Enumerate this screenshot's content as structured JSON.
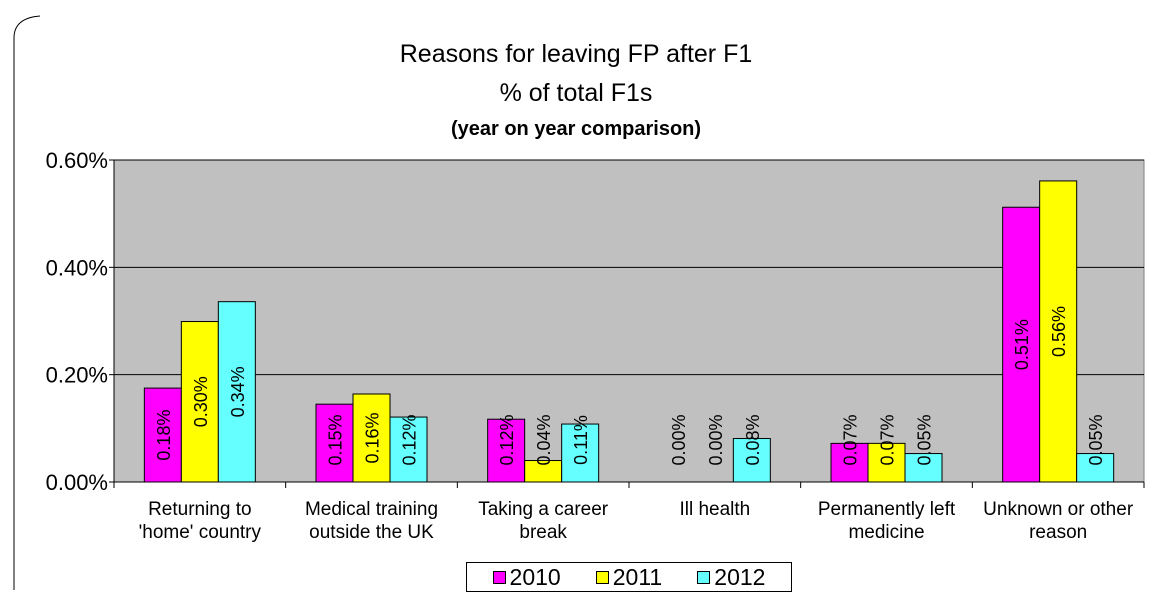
{
  "chart_data": {
    "type": "bar",
    "title_lines": [
      "Reasons for leaving FP after F1",
      "% of total F1s",
      "(year on year comparison)"
    ],
    "categories": [
      [
        "Returning to",
        "'home' country"
      ],
      [
        "Medical training",
        "outside the UK"
      ],
      [
        "Taking a career",
        "break"
      ],
      [
        "Ill health"
      ],
      [
        "Permanently left",
        "medicine"
      ],
      [
        "Unknown or other",
        "reason"
      ]
    ],
    "series": [
      {
        "name": "2010",
        "color": "#ff00ff",
        "values": [
          0.175,
          0.145,
          0.117,
          0.0,
          0.072,
          0.512
        ],
        "labels": [
          "0.18%",
          "0.15%",
          "0.12%",
          "0.00%",
          "0.07%",
          "0.51%"
        ]
      },
      {
        "name": "2011",
        "color": "#ffff00",
        "values": [
          0.299,
          0.164,
          0.04,
          0.0,
          0.072,
          0.561
        ],
        "labels": [
          "0.30%",
          "0.16%",
          "0.04%",
          "0.00%",
          "0.07%",
          "0.56%"
        ]
      },
      {
        "name": "2012",
        "color": "#66ffff",
        "values": [
          0.336,
          0.121,
          0.108,
          0.081,
          0.053,
          0.053
        ],
        "labels": [
          "0.34%",
          "0.12%",
          "0.11%",
          "0.08%",
          "0.05%",
          "0.05%"
        ]
      }
    ],
    "y_ticks": [
      "0.00%",
      "0.20%",
      "0.40%",
      "0.60%"
    ],
    "y_tick_values": [
      0,
      0.2,
      0.4,
      0.6
    ],
    "ylim": [
      0,
      0.6
    ],
    "xlabel": "",
    "ylabel": "",
    "grid": true,
    "plot_background": "#c0c0c0",
    "legend_position": "bottom"
  }
}
